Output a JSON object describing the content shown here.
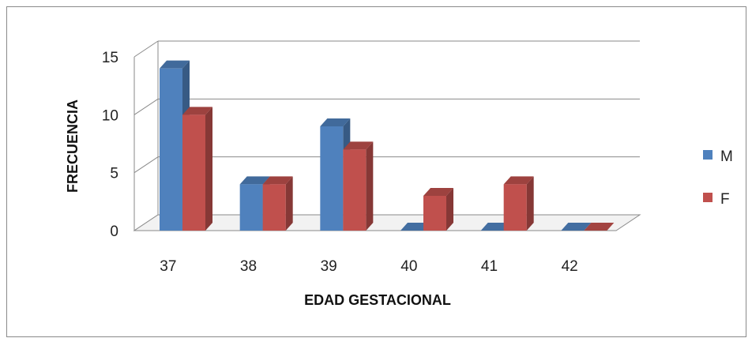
{
  "chart_data": {
    "type": "bar",
    "categories": [
      "37",
      "38",
      "39",
      "40",
      "41",
      "42"
    ],
    "series": [
      {
        "name": "M",
        "values": [
          14,
          4,
          9,
          0,
          0,
          0
        ],
        "color": "#4F81BD"
      },
      {
        "name": "F",
        "values": [
          10,
          4,
          7,
          3,
          4,
          0
        ],
        "color": "#C0504D"
      }
    ],
    "xlabel": "EDAD GESTACIONAL",
    "ylabel": "FRECUENCIA",
    "ylim": [
      0,
      15
    ],
    "yticks": [
      "0",
      "5",
      "10",
      "15"
    ],
    "grid": true,
    "legend": "right",
    "style": "3d"
  }
}
